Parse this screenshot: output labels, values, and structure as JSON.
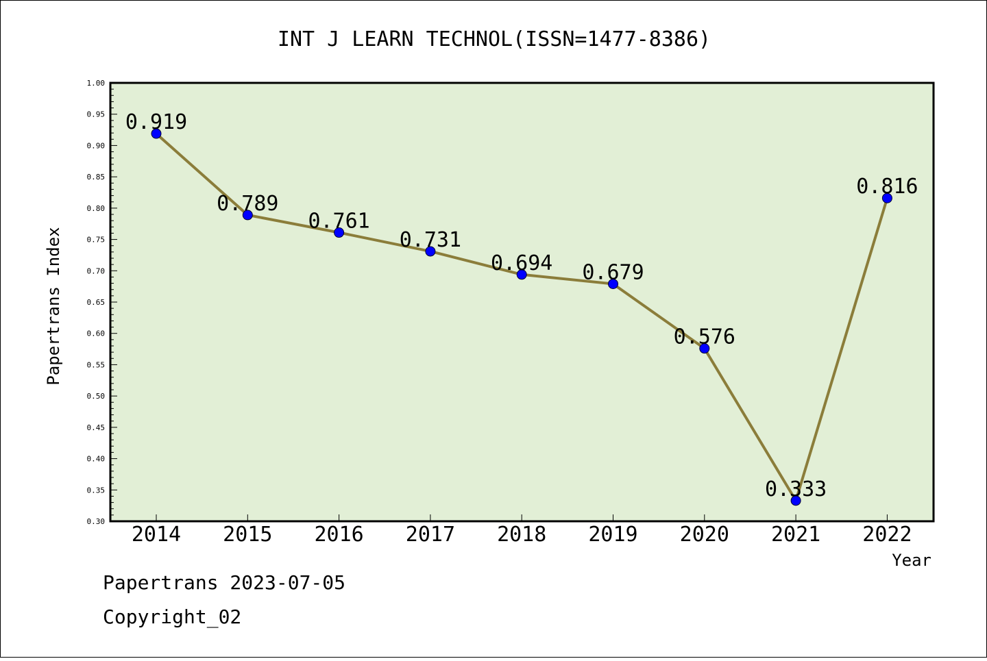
{
  "chart_data": {
    "type": "line",
    "title": "INT J LEARN TECHNOL(ISSN=1477-8386)",
    "xlabel": "Year",
    "ylabel": "Papertrans Index",
    "ylim": [
      0.3,
      1.0
    ],
    "yticks": [
      "0.30",
      "0.35",
      "0.40",
      "0.45",
      "0.50",
      "0.55",
      "0.60",
      "0.65",
      "0.70",
      "0.75",
      "0.80",
      "0.85",
      "0.90",
      "0.95",
      "1.00"
    ],
    "categories": [
      "2014",
      "2015",
      "2016",
      "2017",
      "2018",
      "2019",
      "2020",
      "2021",
      "2022"
    ],
    "values": [
      0.919,
      0.789,
      0.761,
      0.731,
      0.694,
      0.679,
      0.576,
      0.333,
      0.816
    ],
    "data_labels": [
      "0.919",
      "0.789",
      "0.761",
      "0.731",
      "0.694",
      "0.679",
      "0.576",
      "0.333",
      "0.816"
    ],
    "grid": false,
    "legend": "none",
    "colors": {
      "plot_bg": "#e2efd6",
      "line": "#8b7d3a",
      "marker": "#0000ff"
    }
  },
  "footer": {
    "line1": "Papertrans 2023-07-05",
    "line2": "Copyright_02"
  }
}
